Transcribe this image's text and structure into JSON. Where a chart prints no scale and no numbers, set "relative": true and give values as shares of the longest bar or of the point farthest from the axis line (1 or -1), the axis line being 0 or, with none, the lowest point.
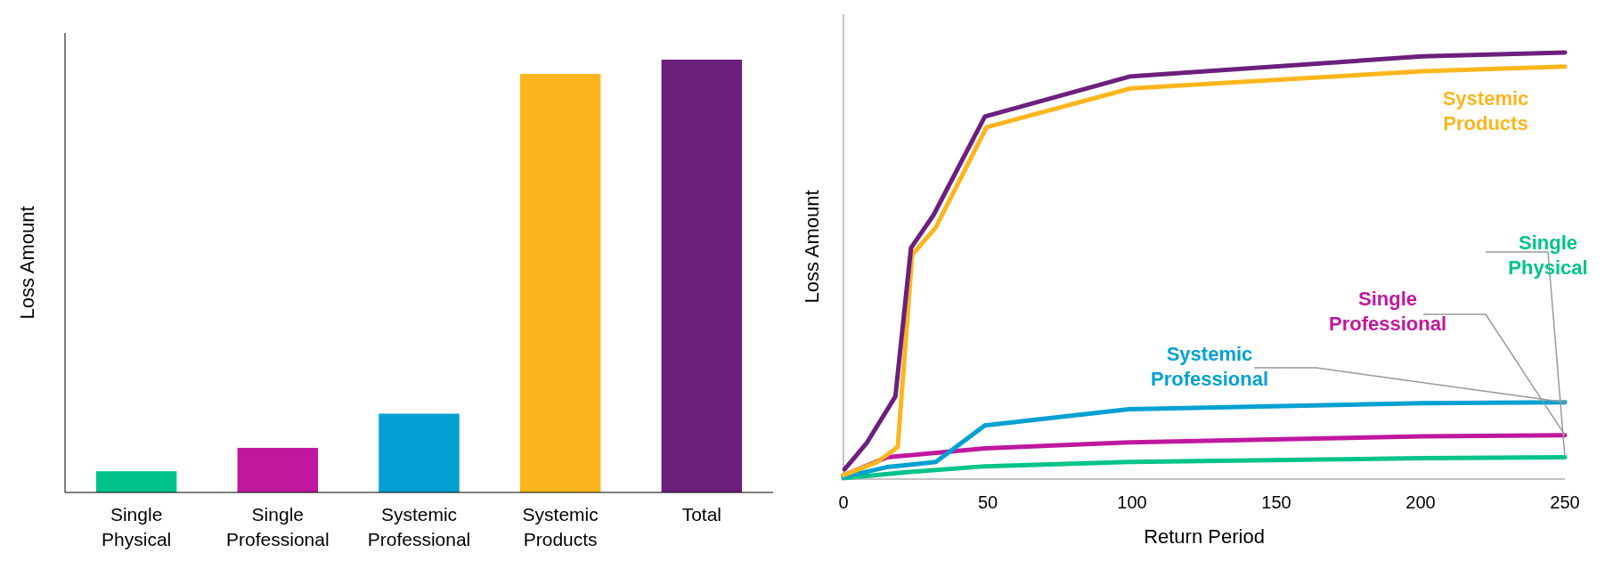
{
  "chart_data": [
    {
      "type": "bar",
      "ylabel": "Loss Amount",
      "relative": true,
      "categories": [
        "Single Physical",
        "Single Professional",
        "Systemic Professional",
        "Systemic Products",
        "Total"
      ],
      "values": [
        0.049,
        0.103,
        0.182,
        0.967,
        1
      ],
      "colors": [
        "#00c389",
        "#c0179f",
        "#00a0d2",
        "#fbb61e",
        "#6c1f7d"
      ]
    },
    {
      "type": "line",
      "ylabel": "Loss Amount",
      "xlabel": "Return Period",
      "relative": true,
      "xlim": [
        0,
        250
      ],
      "xticks": [
        0,
        50,
        100,
        150,
        200,
        250
      ],
      "series": [
        {
          "name": "Single Physical",
          "color": "#00c389",
          "x": [
            0,
            22,
            49,
            99,
            201,
            250
          ],
          "values": [
            0.002,
            0.016,
            0.03,
            0.04,
            0.049,
            0.051
          ]
        },
        {
          "name": "Single Professional",
          "color": "#c0179f",
          "x": [
            0,
            15,
            49,
            99,
            201,
            250
          ],
          "values": [
            0.009,
            0.051,
            0.072,
            0.086,
            0.1,
            0.103
          ]
        },
        {
          "name": "Systemic Professional",
          "color": "#00a0d2",
          "x": [
            0,
            15,
            32,
            49,
            99,
            201,
            250
          ],
          "values": [
            0.005,
            0.028,
            0.04,
            0.126,
            0.164,
            0.178,
            0.18
          ]
        },
        {
          "name": "Systemic Products",
          "color": "#fbb61e",
          "x": [
            0,
            11.7,
            18.8,
            23.8,
            31.9,
            49.6,
            99.6,
            200.7,
            250
          ],
          "values": [
            0.009,
            0.04,
            0.075,
            0.526,
            0.589,
            0.825,
            0.916,
            0.956,
            0.967
          ]
        },
        {
          "color": "#6c1f7d",
          "x": [
            0.4,
            3.9,
            8.2,
            18,
            23.4,
            31.2,
            49,
            99.3,
            200.7,
            250
          ],
          "values": [
            0.023,
            0.051,
            0.086,
            0.194,
            0.542,
            0.619,
            0.85,
            0.944,
            0.991,
            1
          ]
        }
      ]
    }
  ]
}
